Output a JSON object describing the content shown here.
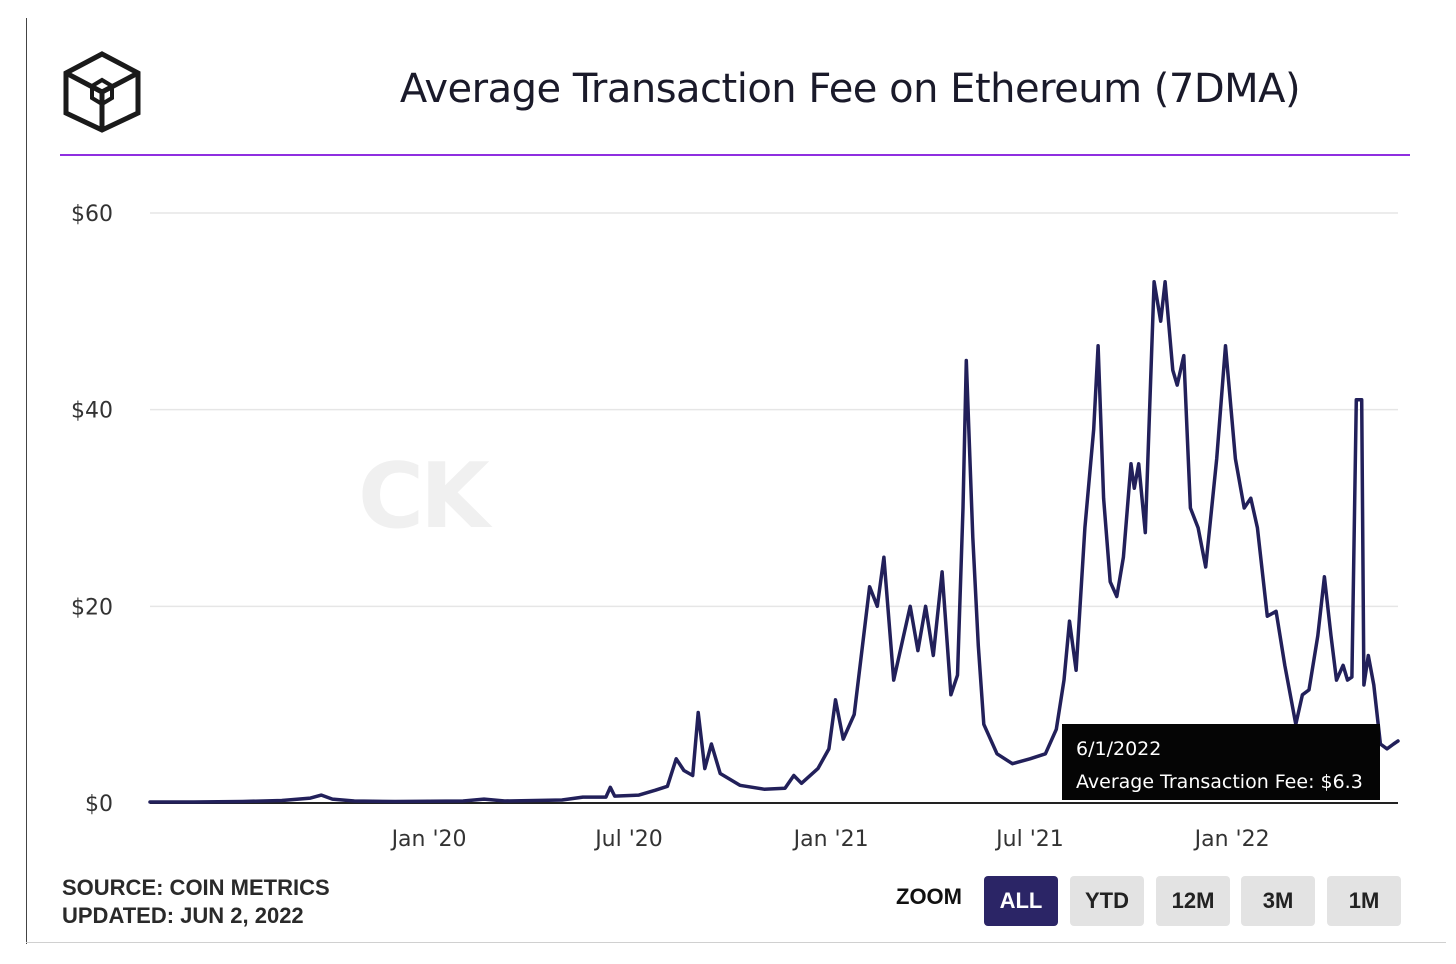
{
  "header": {
    "title": "Average Transaction Fee on Ethereum (7DMA)",
    "logo_icon": "block-cube-logo-icon"
  },
  "watermark": "CK",
  "tooltip": {
    "date": "6/1/2022",
    "text": "Average Transaction Fee: $6.3"
  },
  "footer": {
    "source": "SOURCE: COIN METRICS",
    "updated": "UPDATED: JUN 2, 2022",
    "zoom_label": "ZOOM",
    "zoom_buttons": [
      "ALL",
      "YTD",
      "12M",
      "3M",
      "1M"
    ],
    "zoom_active": "ALL"
  },
  "colors": {
    "line": "#22205a",
    "title_rule": "#8f2fe0",
    "zoom_active_bg": "#2b2566",
    "zoom_bg": "#e3e3e3"
  },
  "chart_data": {
    "type": "line",
    "title": "Average Transaction Fee on Ethereum (7DMA)",
    "xlabel": "",
    "ylabel": "",
    "y_ticks": [
      "$0",
      "$20",
      "$40",
      "$60"
    ],
    "y_tick_values": [
      0,
      20,
      40,
      60
    ],
    "ylim": [
      0,
      60
    ],
    "x_ticks": [
      "Jan '20",
      "Jul '20",
      "Jan '21",
      "Jul '21",
      "Jan '22"
    ],
    "x_tick_dates": [
      "2020-01-01",
      "2020-07-01",
      "2021-01-01",
      "2021-07-01",
      "2022-01-01"
    ],
    "xlim": [
      "2019-04-22",
      "2022-06-01"
    ],
    "grid": true,
    "legend": "none",
    "series": [
      {
        "values": [
          [
            "2019-04-22",
            0.1
          ],
          [
            "2019-06-01",
            0.1
          ],
          [
            "2019-07-15",
            0.15
          ],
          [
            "2019-08-20",
            0.25
          ],
          [
            "2019-09-15",
            0.5
          ],
          [
            "2019-09-25",
            0.8
          ],
          [
            "2019-10-05",
            0.4
          ],
          [
            "2019-10-25",
            0.2
          ],
          [
            "2019-12-01",
            0.15
          ],
          [
            "2020-02-01",
            0.2
          ],
          [
            "2020-02-20",
            0.4
          ],
          [
            "2020-03-10",
            0.2
          ],
          [
            "2020-05-01",
            0.3
          ],
          [
            "2020-05-20",
            0.6
          ],
          [
            "2020-06-10",
            0.6
          ],
          [
            "2020-06-14",
            1.6
          ],
          [
            "2020-06-18",
            0.7
          ],
          [
            "2020-07-10",
            0.8
          ],
          [
            "2020-07-25",
            1.3
          ],
          [
            "2020-08-05",
            1.7
          ],
          [
            "2020-08-13",
            4.5
          ],
          [
            "2020-08-20",
            3.3
          ],
          [
            "2020-08-28",
            2.8
          ],
          [
            "2020-09-02",
            9.2
          ],
          [
            "2020-09-08",
            3.5
          ],
          [
            "2020-09-14",
            6.0
          ],
          [
            "2020-09-22",
            3.0
          ],
          [
            "2020-10-10",
            1.8
          ],
          [
            "2020-11-01",
            1.4
          ],
          [
            "2020-11-20",
            1.5
          ],
          [
            "2020-11-28",
            2.8
          ],
          [
            "2020-12-05",
            2.0
          ],
          [
            "2020-12-20",
            3.5
          ],
          [
            "2020-12-30",
            5.5
          ],
          [
            "2021-01-05",
            10.5
          ],
          [
            "2021-01-12",
            6.5
          ],
          [
            "2021-01-22",
            9.0
          ],
          [
            "2021-02-05",
            22.0
          ],
          [
            "2021-02-12",
            20.0
          ],
          [
            "2021-02-18",
            25.0
          ],
          [
            "2021-02-27",
            12.5
          ],
          [
            "2021-03-08",
            17.0
          ],
          [
            "2021-03-14",
            20.0
          ],
          [
            "2021-03-21",
            15.5
          ],
          [
            "2021-03-28",
            20.0
          ],
          [
            "2021-04-04",
            15.0
          ],
          [
            "2021-04-12",
            23.5
          ],
          [
            "2021-04-20",
            11.0
          ],
          [
            "2021-04-26",
            13.0
          ],
          [
            "2021-05-01",
            30.0
          ],
          [
            "2021-05-04",
            45.0
          ],
          [
            "2021-05-10",
            27.0
          ],
          [
            "2021-05-15",
            16.0
          ],
          [
            "2021-05-20",
            8.0
          ],
          [
            "2021-06-01",
            5.0
          ],
          [
            "2021-06-15",
            4.0
          ],
          [
            "2021-07-01",
            4.5
          ],
          [
            "2021-07-15",
            5.0
          ],
          [
            "2021-07-25",
            7.5
          ],
          [
            "2021-08-01",
            12.5
          ],
          [
            "2021-08-06",
            18.5
          ],
          [
            "2021-08-12",
            13.5
          ],
          [
            "2021-08-20",
            28.0
          ],
          [
            "2021-08-28",
            38.0
          ],
          [
            "2021-09-01",
            46.5
          ],
          [
            "2021-09-06",
            31.0
          ],
          [
            "2021-09-12",
            22.5
          ],
          [
            "2021-09-18",
            21.0
          ],
          [
            "2021-09-24",
            25.0
          ],
          [
            "2021-10-01",
            34.5
          ],
          [
            "2021-10-04",
            32.0
          ],
          [
            "2021-10-08",
            34.5
          ],
          [
            "2021-10-14",
            27.5
          ],
          [
            "2021-10-22",
            53.0
          ],
          [
            "2021-10-28",
            49.0
          ],
          [
            "2021-11-01",
            53.0
          ],
          [
            "2021-11-08",
            44.0
          ],
          [
            "2021-11-12",
            42.5
          ],
          [
            "2021-11-18",
            45.5
          ],
          [
            "2021-11-24",
            30.0
          ],
          [
            "2021-12-01",
            28.0
          ],
          [
            "2021-12-08",
            24.0
          ],
          [
            "2021-12-18",
            35.0
          ],
          [
            "2021-12-26",
            46.5
          ],
          [
            "2022-01-04",
            35.0
          ],
          [
            "2022-01-12",
            30.0
          ],
          [
            "2022-01-18",
            31.0
          ],
          [
            "2022-01-24",
            28.0
          ],
          [
            "2022-02-02",
            19.0
          ],
          [
            "2022-02-10",
            19.5
          ],
          [
            "2022-02-18",
            14.0
          ],
          [
            "2022-02-28",
            8.0
          ],
          [
            "2022-03-06",
            11.0
          ],
          [
            "2022-03-12",
            11.5
          ],
          [
            "2022-03-20",
            17.0
          ],
          [
            "2022-03-26",
            23.0
          ],
          [
            "2022-04-01",
            17.0
          ],
          [
            "2022-04-06",
            12.5
          ],
          [
            "2022-04-12",
            14.0
          ],
          [
            "2022-04-16",
            12.5
          ],
          [
            "2022-04-20",
            12.8
          ],
          [
            "2022-04-24",
            41.0
          ],
          [
            "2022-04-29",
            41.0
          ],
          [
            "2022-05-01",
            12.0
          ],
          [
            "2022-05-05",
            15.0
          ],
          [
            "2022-05-10",
            12.0
          ],
          [
            "2022-05-16",
            6.0
          ],
          [
            "2022-05-22",
            5.5
          ],
          [
            "2022-05-28",
            6.0
          ],
          [
            "2022-06-01",
            6.3
          ]
        ]
      }
    ]
  }
}
